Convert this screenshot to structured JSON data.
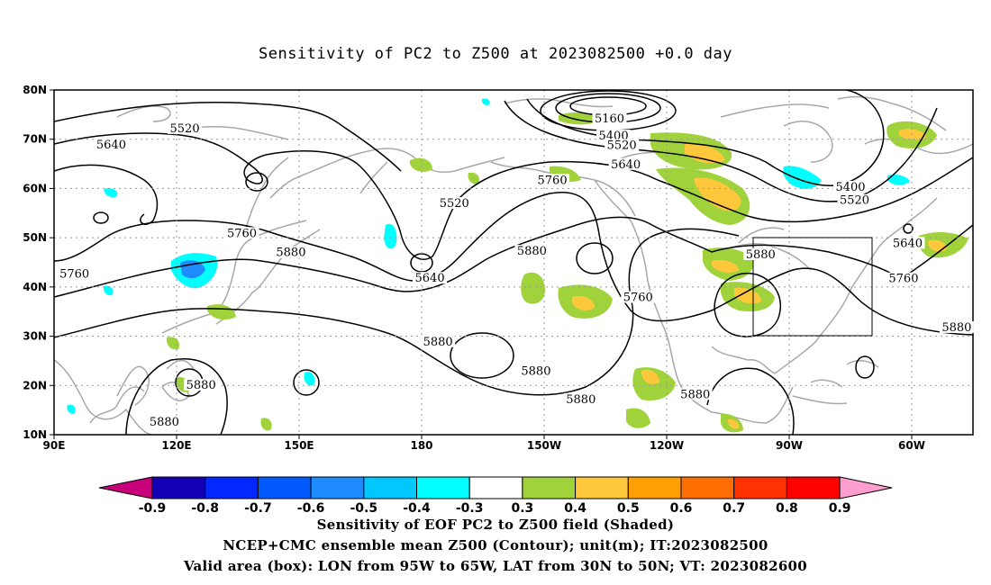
{
  "title": "Sensitivity of PC2 to Z500 at 2023082500 +0.0 day",
  "lat_labels": [
    "80N",
    "70N",
    "60N",
    "50N",
    "40N",
    "30N",
    "20N",
    "10N"
  ],
  "lon_labels": [
    "90E",
    "120E",
    "150E",
    "180",
    "150W",
    "120W",
    "90W",
    "60W"
  ],
  "contour_labels": [
    {
      "text": "5520",
      "lon": 122,
      "lat": 71.8
    },
    {
      "text": "5640",
      "lon": 104,
      "lat": 68.5
    },
    {
      "text": "5160",
      "lon": 226,
      "lat": 73.8
    },
    {
      "text": "5400",
      "lon": 227,
      "lat": 70.3
    },
    {
      "text": "5520",
      "lon": 229,
      "lat": 68.4
    },
    {
      "text": "5640",
      "lon": 230,
      "lat": 64.5
    },
    {
      "text": "5760",
      "lon": 212,
      "lat": 61.3
    },
    {
      "text": "5520",
      "lon": 188,
      "lat": 56.6
    },
    {
      "text": "5400",
      "lon": 285,
      "lat": 59.9
    },
    {
      "text": "5520",
      "lon": 286,
      "lat": 57.2
    },
    {
      "text": "5760",
      "lon": 136,
      "lat": 50.5
    },
    {
      "text": "5880",
      "lon": 148,
      "lat": 46.6
    },
    {
      "text": "5760",
      "lon": 95,
      "lat": 42.3
    },
    {
      "text": "5640",
      "lon": 182,
      "lat": 41.4
    },
    {
      "text": "5880",
      "lon": 207,
      "lat": 46.9
    },
    {
      "text": "5880",
      "lon": 263,
      "lat": 46.2
    },
    {
      "text": "5760",
      "lon": 233,
      "lat": 37.5
    },
    {
      "text": "5640",
      "lon": 299,
      "lat": 48.5
    },
    {
      "text": "5760",
      "lon": 298,
      "lat": 41.3
    },
    {
      "text": "5880",
      "lon": 184,
      "lat": 28.5
    },
    {
      "text": "5880",
      "lon": 208,
      "lat": 22.5
    },
    {
      "text": "5880",
      "lon": 126,
      "lat": 19.7
    },
    {
      "text": "5880",
      "lon": 117,
      "lat": 12.2
    },
    {
      "text": "5880",
      "lon": 219,
      "lat": 16.8
    },
    {
      "text": "5880",
      "lon": 247,
      "lat": 17.8
    },
    {
      "text": "5880",
      "lon": 311,
      "lat": 31.4
    }
  ],
  "colorbar": {
    "labels": [
      "-0.9",
      "-0.8",
      "-0.7",
      "-0.6",
      "-0.5",
      "-0.4",
      "-0.3",
      "0.3",
      "0.4",
      "0.5",
      "0.6",
      "0.7",
      "0.8",
      "0.9"
    ],
    "colors": [
      "#c8007a",
      "#1400b4",
      "#0028ff",
      "#005aff",
      "#1e8cff",
      "#00c8ff",
      "#00ffff",
      "#ffffff",
      "#a0d23c",
      "#ffc83c",
      "#ffa000",
      "#ff6e00",
      "#ff3200",
      "#ff0000",
      "#ff9ecf"
    ]
  },
  "footer": {
    "line1": "Sensitivity of EOF PC2 to Z500 field (Shaded)",
    "line2": "NCEP+CMC ensemble mean Z500 (Contour); unit(m); IT:2023082500",
    "line3": "Valid area (box): LON from 95W to 65W, LAT from 30N to 50N; VT: 2023082600"
  }
}
